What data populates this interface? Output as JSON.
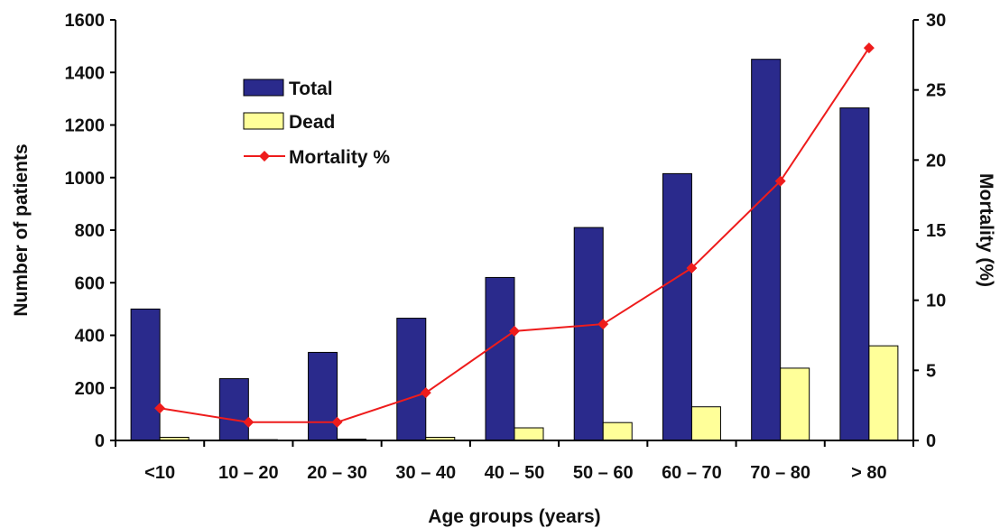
{
  "chart_data": {
    "type": "bar",
    "categories": [
      "<10",
      "10 – 20",
      "20 – 30",
      "30 – 40",
      "40 – 50",
      "50 – 60",
      "60 – 70",
      "70 – 80",
      "> 80"
    ],
    "series": [
      {
        "name": "Total",
        "type": "bar",
        "axis": "left",
        "color": "#2a2a8c",
        "values": [
          500,
          235,
          335,
          465,
          620,
          810,
          1015,
          1450,
          1265
        ]
      },
      {
        "name": "Dead",
        "type": "bar",
        "axis": "left",
        "color": "#ffff99",
        "values": [
          12,
          3,
          5,
          12,
          48,
          68,
          128,
          275,
          360
        ]
      },
      {
        "name": "Mortality %",
        "type": "line",
        "axis": "right",
        "color": "#ee1c1c",
        "values": [
          2.3,
          1.3,
          1.3,
          3.4,
          7.8,
          8.3,
          12.3,
          18.5,
          28.0
        ]
      }
    ],
    "xlabel": "Age groups (years)",
    "ylabel": "Number of patients",
    "y2label": "Mortality (%)",
    "ylim": [
      0,
      1600
    ],
    "y2lim": [
      0,
      30
    ],
    "yticks": [
      "0",
      "200",
      "400",
      "600",
      "800",
      "1000",
      "1200",
      "1400",
      "1600"
    ],
    "y2ticks": [
      "0",
      "5",
      "10",
      "15",
      "20",
      "25",
      "30"
    ],
    "grid": false,
    "legend_position": "top-left"
  }
}
